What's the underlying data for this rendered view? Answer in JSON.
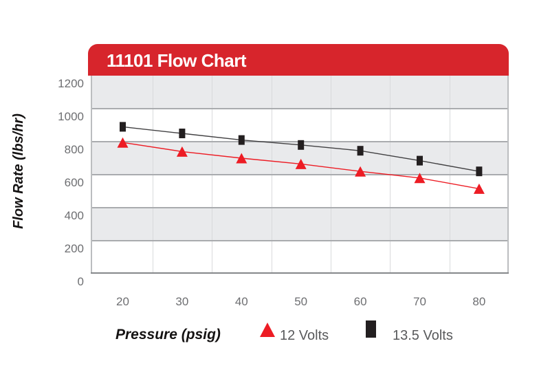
{
  "header": {
    "title": "11101 Flow Chart",
    "bg_color": "#d7252c",
    "text_color": "#ffffff"
  },
  "y_axis": {
    "title": "Flow Rate (lbs/hr)",
    "ticks": [
      "1200",
      "1000",
      "800",
      "600",
      "400",
      "200",
      "0"
    ]
  },
  "x_axis": {
    "title": "Pressure (psig)",
    "ticks": [
      "20",
      "30",
      "40",
      "50",
      "60",
      "70",
      "80"
    ]
  },
  "legend": [
    {
      "label": "12 Volts",
      "marker": "triangle",
      "color": "#ed1c24"
    },
    {
      "label": "13.5 Volts",
      "marker": "square",
      "color": "#231f20"
    }
  ],
  "chart_data": {
    "type": "line",
    "title": "11101 Flow Chart",
    "xlabel": "Pressure (psig)",
    "ylabel": "Flow Rate (lbs/hr)",
    "x": [
      20,
      30,
      40,
      50,
      60,
      70,
      80
    ],
    "xlim": [
      20,
      80
    ],
    "ylim": [
      0,
      1200
    ],
    "y_tick_step": 200,
    "grid": "alternating horizontal gray/white bands every 200 units, light vertical gridlines midway between categories",
    "legend_position": "bottom",
    "series": [
      {
        "name": "12 Volts",
        "marker": "triangle",
        "color": "#ed1c24",
        "values": [
          795,
          740,
          700,
          665,
          620,
          580,
          515
        ]
      },
      {
        "name": "13.5 Volts",
        "marker": "square",
        "color": "#231f20",
        "values": [
          890,
          850,
          810,
          780,
          745,
          685,
          620
        ]
      }
    ],
    "style_colors": {
      "header_red": "#d7252c",
      "band_gray": "#e9eaec",
      "band_white": "#ffffff",
      "grid_boundary": "#a9abae",
      "vertical_grid": "#d9dadc",
      "axis_line": "#85878a",
      "tick_text": "#6d6e71",
      "legend_text": "#58595b"
    }
  }
}
